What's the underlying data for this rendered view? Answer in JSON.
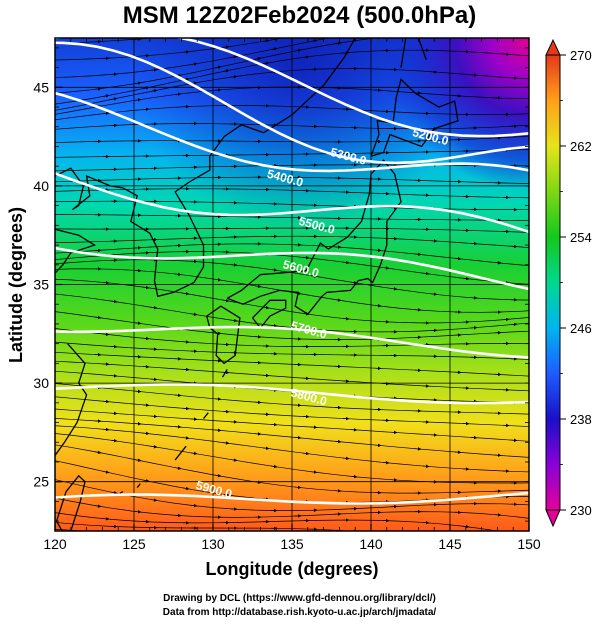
{
  "title": "MSM 12Z02Feb2024 (500.0hPa)",
  "xlabel": "Longitude (degrees)",
  "ylabel": "Latitude  (degrees)",
  "x_ticks": [
    "120",
    "125",
    "130",
    "135",
    "140",
    "145",
    "150"
  ],
  "y_ticks": [
    "25",
    "30",
    "35",
    "40",
    "45"
  ],
  "colorbar": {
    "ticks": [
      "270",
      "262",
      "254",
      "246",
      "238",
      "230"
    ],
    "min": 230,
    "max": 270,
    "colors": [
      "#e60096",
      "#7f00d9",
      "#0a17c9",
      "#1e6bff",
      "#00bff2",
      "#00e08a",
      "#16c81e",
      "#7fdb14",
      "#e3e61a",
      "#ffb31a",
      "#ff661a",
      "#e6331a"
    ]
  },
  "contours": [
    {
      "label": "5200.0",
      "value": 5200
    },
    {
      "label": "5300.0",
      "value": 5300
    },
    {
      "label": "5400.0",
      "value": 5400
    },
    {
      "label": "5500.0",
      "value": 5500
    },
    {
      "label": "5600.0",
      "value": 5600
    },
    {
      "label": "5700.0",
      "value": 5700
    },
    {
      "label": "5800.0",
      "value": 5800
    },
    {
      "label": "5900.0",
      "value": 5900
    }
  ],
  "credits": [
    "Drawing by DCL (https://www.gfd-dennou.org/library/dcl/)",
    "Data from http://database.rish.kyoto-u.ac.jp/arch/jmadata/"
  ],
  "colors": {
    "contour": "#ffffff",
    "streamline": "#000000",
    "coast": "#000000"
  },
  "chart_data": {
    "type": "heatmap",
    "title": "MSM 12Z02Feb2024 (500.0hPa)",
    "xlabel": "Longitude (degrees)",
    "ylabel": "Latitude  (degrees)",
    "xlim": [
      120,
      150
    ],
    "ylim": [
      22.5,
      47.5
    ],
    "color_range": [
      230,
      270
    ],
    "contour_levels": [
      5200,
      5300,
      5400,
      5500,
      5600,
      5700,
      5800,
      5900
    ],
    "streamlines": "westerly flow, arrows pointing east"
  }
}
